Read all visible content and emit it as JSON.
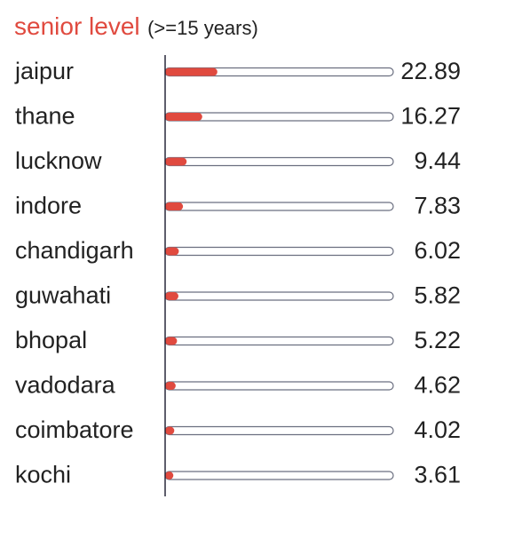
{
  "chart_data": {
    "type": "bar",
    "title": "senior level",
    "subtitle": "(>=15 years)",
    "categories": [
      "jaipur",
      "thane",
      "lucknow",
      "indore",
      "chandigarh",
      "guwahati",
      "bhopal",
      "vadodara",
      "coimbatore",
      "kochi"
    ],
    "values": [
      22.89,
      16.27,
      9.44,
      7.83,
      6.02,
      5.82,
      5.22,
      4.62,
      4.02,
      3.61
    ],
    "value_labels": [
      "22.89",
      "16.27",
      "9.44",
      "7.83",
      "6.02",
      "5.82",
      "5.22",
      "4.62",
      "4.02",
      "3.61"
    ],
    "xlim": [
      0,
      100
    ],
    "orientation": "horizontal",
    "grid": false,
    "legend": "none",
    "colors": {
      "title": "#e04a3f",
      "bar_fill": "#e04a3f",
      "track_stroke": "#6b6f80",
      "axis": "#1a1a2e",
      "text": "#222222"
    }
  }
}
